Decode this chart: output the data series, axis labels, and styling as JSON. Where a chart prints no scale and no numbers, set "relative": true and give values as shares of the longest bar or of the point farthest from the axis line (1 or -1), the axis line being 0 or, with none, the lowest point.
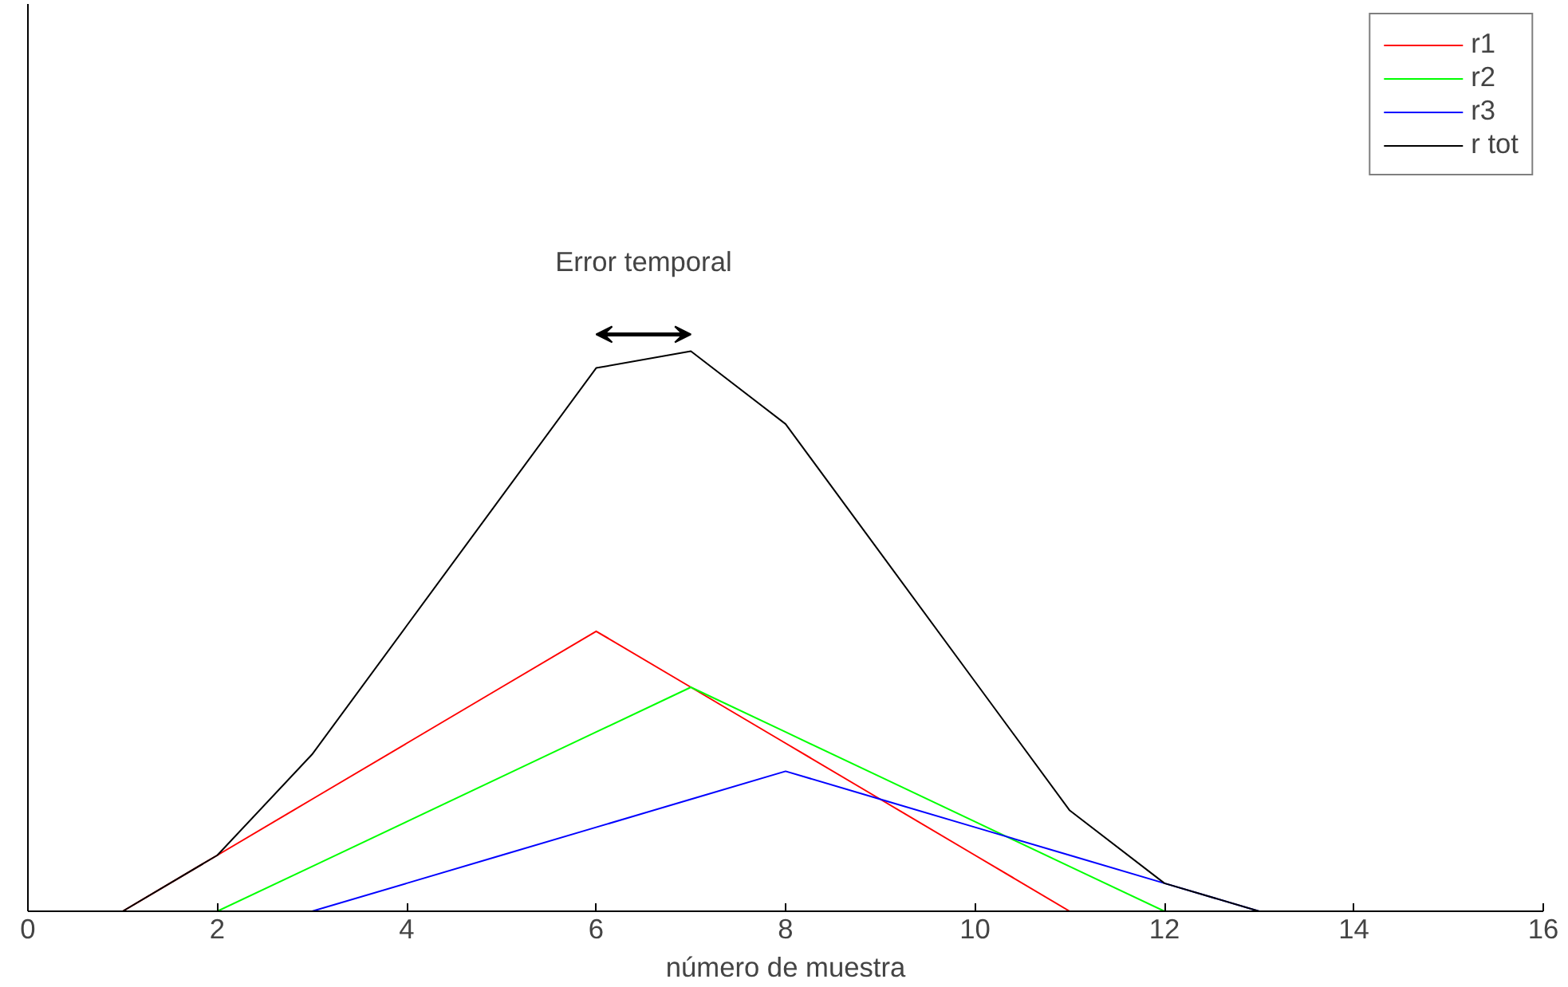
{
  "chart_data": {
    "type": "line",
    "relative": true,
    "xlabel": "número de muestra",
    "xlim": [
      0,
      16
    ],
    "xticks": [
      0,
      2,
      4,
      6,
      8,
      10,
      12,
      14,
      16
    ],
    "x": [
      1,
      2,
      3,
      4,
      5,
      6,
      7,
      8,
      9,
      10,
      11,
      12,
      13,
      14,
      15,
      16
    ],
    "series": [
      {
        "name": "r1",
        "color": "#ff0000",
        "x": [
          1,
          2,
          3,
          4,
          5,
          6,
          7,
          8,
          9,
          10,
          11,
          12
        ],
        "values": [
          0,
          0.1,
          0.2,
          0.3,
          0.4,
          0.5,
          0.4,
          0.3,
          0.2,
          0.1,
          0,
          0
        ]
      },
      {
        "name": "r2",
        "color": "#00ff00",
        "x": [
          1,
          2,
          3,
          4,
          5,
          6,
          7,
          8,
          9,
          10,
          11,
          12,
          13
        ],
        "values": [
          0,
          0,
          0.08,
          0.16,
          0.24,
          0.32,
          0.4,
          0.32,
          0.24,
          0.16,
          0.08,
          0,
          0
        ]
      },
      {
        "name": "r3",
        "color": "#0000ff",
        "x": [
          1,
          2,
          3,
          4,
          5,
          6,
          7,
          8,
          9,
          10,
          11,
          12,
          13
        ],
        "values": [
          0,
          0,
          0,
          0.05,
          0.1,
          0.15,
          0.2,
          0.25,
          0.2,
          0.15,
          0.1,
          0.05,
          0
        ]
      },
      {
        "name": "r tot",
        "color": "#000000",
        "values": [
          0,
          0.1,
          0.28,
          0.51,
          0.74,
          0.97,
          1.0,
          0.87,
          0.64,
          0.41,
          0.18,
          0.05,
          0,
          0,
          0,
          0
        ]
      }
    ],
    "annotations": [
      "Error temporal"
    ],
    "legend": "top right",
    "grid": false
  }
}
